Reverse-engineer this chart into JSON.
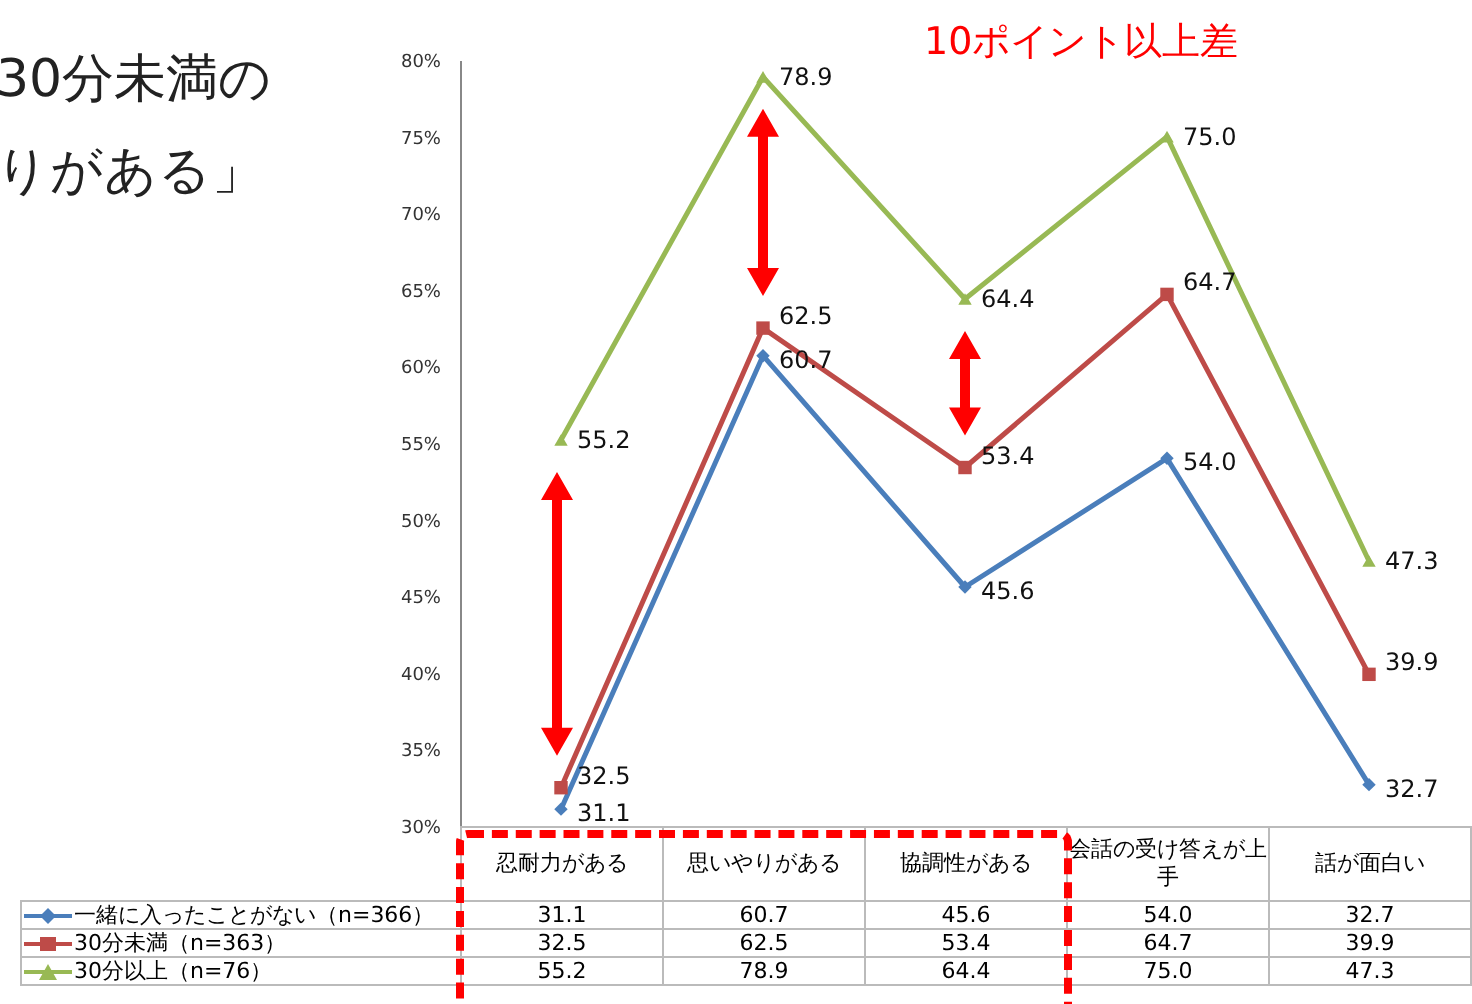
{
  "chart_data": {
    "type": "line",
    "categories": [
      "忍耐力がある",
      "思いやりがある",
      "協調性がある",
      "会話の受け答えが上手",
      "話が面白い"
    ],
    "series": [
      {
        "name": "一緒に入ったことがない（n=366）",
        "color": "#4a7ebb",
        "marker": "diamond",
        "values": [
          31.1,
          60.7,
          45.6,
          54.0,
          32.7
        ],
        "value_labels": [
          "31.1",
          "60.7",
          "45.6",
          "54.0",
          "32.7"
        ]
      },
      {
        "name": "30分未満（n=363）",
        "color": "#be4b48",
        "marker": "square",
        "values": [
          32.5,
          62.5,
          53.4,
          64.7,
          39.9
        ],
        "value_labels": [
          "32.5",
          "62.5",
          "53.4",
          "64.7",
          "39.9"
        ]
      },
      {
        "name": "30分以上（n=76）",
        "color": "#98b954",
        "marker": "triangle",
        "values": [
          55.2,
          78.9,
          64.4,
          75.0,
          47.3
        ],
        "value_labels": [
          "55.2",
          "78.9",
          "64.4",
          "75.0",
          "47.3"
        ]
      }
    ],
    "ylim": [
      30,
      80
    ],
    "yticks": [
      {
        "value": 30,
        "label": "30%"
      },
      {
        "value": 35,
        "label": "35%"
      },
      {
        "value": 40,
        "label": "40%"
      },
      {
        "value": 45,
        "label": "45%"
      },
      {
        "value": 50,
        "label": "50%"
      },
      {
        "value": 55,
        "label": "55%"
      },
      {
        "value": 60,
        "label": "60%"
      },
      {
        "value": 65,
        "label": "65%"
      },
      {
        "value": 70,
        "label": "70%"
      },
      {
        "value": 75,
        "label": "75%"
      },
      {
        "value": 80,
        "label": "80%"
      }
    ],
    "legend": "bottom",
    "grid": false,
    "line_style": "solid",
    "annotations": [
      "30分未満の",
      "りがある」",
      "10ポイント以上差"
    ]
  }
}
